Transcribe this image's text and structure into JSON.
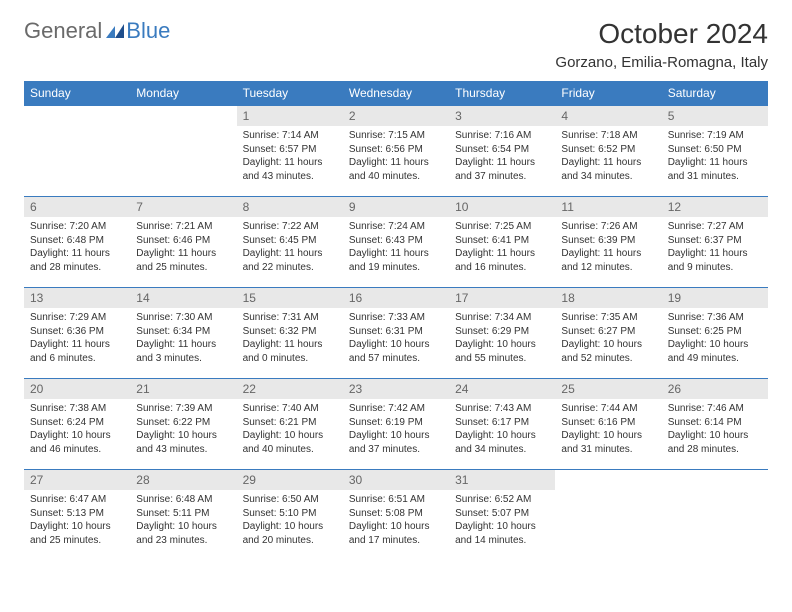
{
  "colors": {
    "header_bg": "#3a7bbf",
    "header_text": "#ffffff",
    "daynum_bg": "#e8e8e8",
    "daynum_text": "#666666",
    "border": "#3a7bbf",
    "body_text": "#333333",
    "logo_gray": "#6a6a6a",
    "logo_blue": "#3a7bbf"
  },
  "logo": {
    "text1": "General",
    "text2": "Blue"
  },
  "title": "October 2024",
  "location": "Gorzano, Emilia-Romagna, Italy",
  "dow": [
    "Sunday",
    "Monday",
    "Tuesday",
    "Wednesday",
    "Thursday",
    "Friday",
    "Saturday"
  ],
  "weeks": [
    [
      {
        "n": "",
        "sr": "",
        "ss": "",
        "dl": ""
      },
      {
        "n": "",
        "sr": "",
        "ss": "",
        "dl": ""
      },
      {
        "n": "1",
        "sr": "Sunrise: 7:14 AM",
        "ss": "Sunset: 6:57 PM",
        "dl": "Daylight: 11 hours and 43 minutes."
      },
      {
        "n": "2",
        "sr": "Sunrise: 7:15 AM",
        "ss": "Sunset: 6:56 PM",
        "dl": "Daylight: 11 hours and 40 minutes."
      },
      {
        "n": "3",
        "sr": "Sunrise: 7:16 AM",
        "ss": "Sunset: 6:54 PM",
        "dl": "Daylight: 11 hours and 37 minutes."
      },
      {
        "n": "4",
        "sr": "Sunrise: 7:18 AM",
        "ss": "Sunset: 6:52 PM",
        "dl": "Daylight: 11 hours and 34 minutes."
      },
      {
        "n": "5",
        "sr": "Sunrise: 7:19 AM",
        "ss": "Sunset: 6:50 PM",
        "dl": "Daylight: 11 hours and 31 minutes."
      }
    ],
    [
      {
        "n": "6",
        "sr": "Sunrise: 7:20 AM",
        "ss": "Sunset: 6:48 PM",
        "dl": "Daylight: 11 hours and 28 minutes."
      },
      {
        "n": "7",
        "sr": "Sunrise: 7:21 AM",
        "ss": "Sunset: 6:46 PM",
        "dl": "Daylight: 11 hours and 25 minutes."
      },
      {
        "n": "8",
        "sr": "Sunrise: 7:22 AM",
        "ss": "Sunset: 6:45 PM",
        "dl": "Daylight: 11 hours and 22 minutes."
      },
      {
        "n": "9",
        "sr": "Sunrise: 7:24 AM",
        "ss": "Sunset: 6:43 PM",
        "dl": "Daylight: 11 hours and 19 minutes."
      },
      {
        "n": "10",
        "sr": "Sunrise: 7:25 AM",
        "ss": "Sunset: 6:41 PM",
        "dl": "Daylight: 11 hours and 16 minutes."
      },
      {
        "n": "11",
        "sr": "Sunrise: 7:26 AM",
        "ss": "Sunset: 6:39 PM",
        "dl": "Daylight: 11 hours and 12 minutes."
      },
      {
        "n": "12",
        "sr": "Sunrise: 7:27 AM",
        "ss": "Sunset: 6:37 PM",
        "dl": "Daylight: 11 hours and 9 minutes."
      }
    ],
    [
      {
        "n": "13",
        "sr": "Sunrise: 7:29 AM",
        "ss": "Sunset: 6:36 PM",
        "dl": "Daylight: 11 hours and 6 minutes."
      },
      {
        "n": "14",
        "sr": "Sunrise: 7:30 AM",
        "ss": "Sunset: 6:34 PM",
        "dl": "Daylight: 11 hours and 3 minutes."
      },
      {
        "n": "15",
        "sr": "Sunrise: 7:31 AM",
        "ss": "Sunset: 6:32 PM",
        "dl": "Daylight: 11 hours and 0 minutes."
      },
      {
        "n": "16",
        "sr": "Sunrise: 7:33 AM",
        "ss": "Sunset: 6:31 PM",
        "dl": "Daylight: 10 hours and 57 minutes."
      },
      {
        "n": "17",
        "sr": "Sunrise: 7:34 AM",
        "ss": "Sunset: 6:29 PM",
        "dl": "Daylight: 10 hours and 55 minutes."
      },
      {
        "n": "18",
        "sr": "Sunrise: 7:35 AM",
        "ss": "Sunset: 6:27 PM",
        "dl": "Daylight: 10 hours and 52 minutes."
      },
      {
        "n": "19",
        "sr": "Sunrise: 7:36 AM",
        "ss": "Sunset: 6:25 PM",
        "dl": "Daylight: 10 hours and 49 minutes."
      }
    ],
    [
      {
        "n": "20",
        "sr": "Sunrise: 7:38 AM",
        "ss": "Sunset: 6:24 PM",
        "dl": "Daylight: 10 hours and 46 minutes."
      },
      {
        "n": "21",
        "sr": "Sunrise: 7:39 AM",
        "ss": "Sunset: 6:22 PM",
        "dl": "Daylight: 10 hours and 43 minutes."
      },
      {
        "n": "22",
        "sr": "Sunrise: 7:40 AM",
        "ss": "Sunset: 6:21 PM",
        "dl": "Daylight: 10 hours and 40 minutes."
      },
      {
        "n": "23",
        "sr": "Sunrise: 7:42 AM",
        "ss": "Sunset: 6:19 PM",
        "dl": "Daylight: 10 hours and 37 minutes."
      },
      {
        "n": "24",
        "sr": "Sunrise: 7:43 AM",
        "ss": "Sunset: 6:17 PM",
        "dl": "Daylight: 10 hours and 34 minutes."
      },
      {
        "n": "25",
        "sr": "Sunrise: 7:44 AM",
        "ss": "Sunset: 6:16 PM",
        "dl": "Daylight: 10 hours and 31 minutes."
      },
      {
        "n": "26",
        "sr": "Sunrise: 7:46 AM",
        "ss": "Sunset: 6:14 PM",
        "dl": "Daylight: 10 hours and 28 minutes."
      }
    ],
    [
      {
        "n": "27",
        "sr": "Sunrise: 6:47 AM",
        "ss": "Sunset: 5:13 PM",
        "dl": "Daylight: 10 hours and 25 minutes."
      },
      {
        "n": "28",
        "sr": "Sunrise: 6:48 AM",
        "ss": "Sunset: 5:11 PM",
        "dl": "Daylight: 10 hours and 23 minutes."
      },
      {
        "n": "29",
        "sr": "Sunrise: 6:50 AM",
        "ss": "Sunset: 5:10 PM",
        "dl": "Daylight: 10 hours and 20 minutes."
      },
      {
        "n": "30",
        "sr": "Sunrise: 6:51 AM",
        "ss": "Sunset: 5:08 PM",
        "dl": "Daylight: 10 hours and 17 minutes."
      },
      {
        "n": "31",
        "sr": "Sunrise: 6:52 AM",
        "ss": "Sunset: 5:07 PM",
        "dl": "Daylight: 10 hours and 14 minutes."
      },
      {
        "n": "",
        "sr": "",
        "ss": "",
        "dl": ""
      },
      {
        "n": "",
        "sr": "",
        "ss": "",
        "dl": ""
      }
    ]
  ]
}
